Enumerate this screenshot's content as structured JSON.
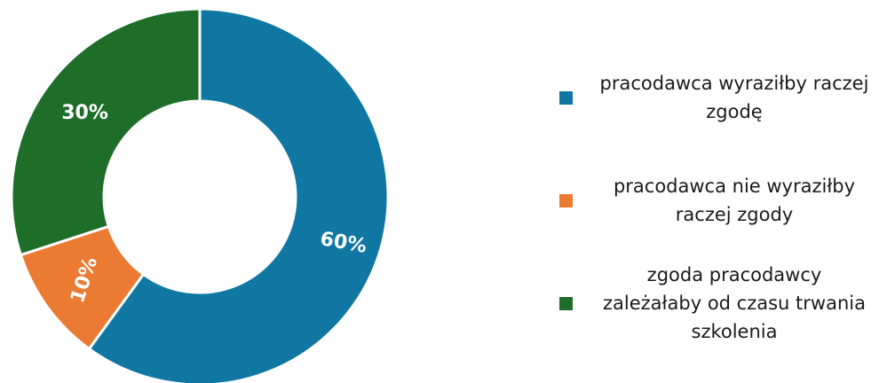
{
  "chart_data": {
    "type": "pie",
    "variant": "donut",
    "categories": [
      "pracodawca wyraziłby raczej zgodę",
      "pracodawca nie wyraziłby raczej zgody",
      "zgoda pracodawcy zależałaby od czasu trwania szkolenia"
    ],
    "values": [
      60,
      10,
      30
    ],
    "value_labels": [
      "60%",
      "10%",
      "30%"
    ],
    "colors": [
      "#0F77A1",
      "#EB7A33",
      "#1E6E2A"
    ],
    "legend_position": "right"
  },
  "legend": {
    "items": [
      {
        "lines": [
          "pracodawca wyraziłby raczej",
          "zgodę"
        ],
        "color": "#0F77A1"
      },
      {
        "lines": [
          "pracodawca nie wyraziłby",
          "raczej zgody"
        ],
        "color": "#EB7A33"
      },
      {
        "lines": [
          "zgoda pracodawcy",
          "zależałaby od czasu trwania",
          "szkolenia"
        ],
        "color": "#1E6E2A"
      }
    ]
  }
}
